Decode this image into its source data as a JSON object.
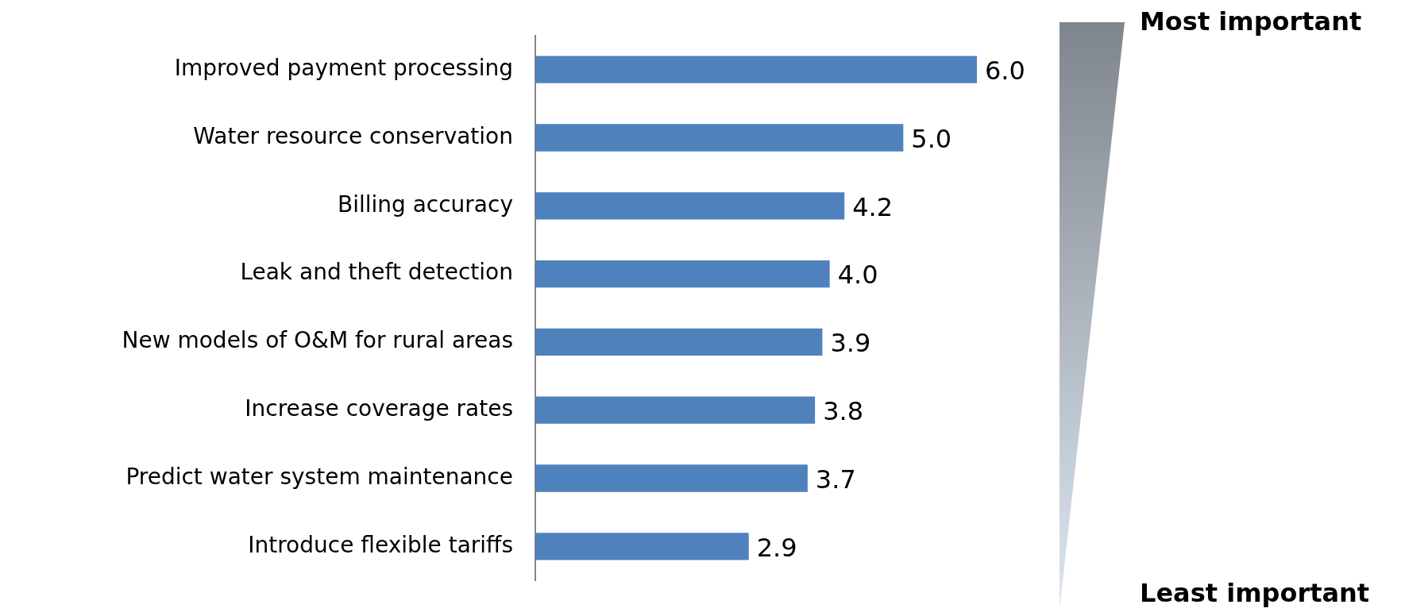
{
  "chart_data": {
    "type": "bar",
    "orientation": "horizontal",
    "categories": [
      "Improved payment processing",
      "Water resource conservation",
      "Billing accuracy",
      "Leak and theft detection",
      "New models of O&M for rural areas",
      "Increase coverage rates",
      "Predict water system maintenance",
      "Introduce flexible tariffs"
    ],
    "values": [
      6.0,
      5.0,
      4.2,
      4.0,
      3.9,
      3.8,
      3.7,
      2.9
    ],
    "value_labels": [
      "6.0",
      "5.0",
      "4.2",
      "4.0",
      "3.9",
      "3.8",
      "3.7",
      "2.9"
    ],
    "color": "#4f81bd",
    "tick_labels": "y",
    "grid": false,
    "legend": false,
    "annotations": [
      "Most important",
      "Least important"
    ]
  }
}
